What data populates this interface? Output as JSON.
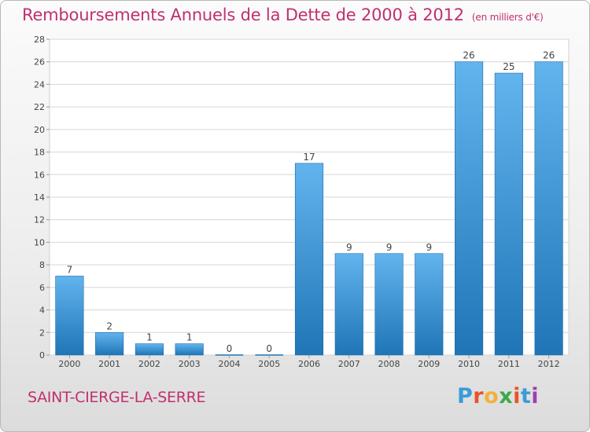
{
  "header": {
    "title": "Remboursements Annuels de la Dette de 2000 à 2012",
    "unit": "(en milliers d'€)"
  },
  "footer": {
    "commune": "SAINT-CIERGE-LA-SERRE",
    "logo_letters": [
      "P",
      "r",
      "o",
      "x",
      "i",
      "t",
      "i"
    ],
    "logo_colors": [
      "#3a9bd8",
      "#e8552a",
      "#f2b13b",
      "#3da94a",
      "#e8552a",
      "#3a9bd8",
      "#9c3fb0"
    ]
  },
  "chart_data": {
    "type": "bar",
    "title": "Remboursements Annuels de la Dette de 2000 à 2012",
    "categories": [
      "2000",
      "2001",
      "2002",
      "2003",
      "2004",
      "2005",
      "2006",
      "2007",
      "2008",
      "2009",
      "2010",
      "2011",
      "2012"
    ],
    "values": [
      7,
      2,
      1,
      1,
      0,
      0,
      17,
      9,
      9,
      9,
      26,
      25,
      26
    ],
    "ylim": [
      0,
      28
    ],
    "yticks": [
      0,
      2,
      4,
      6,
      8,
      10,
      12,
      14,
      16,
      18,
      20,
      22,
      24,
      26,
      28
    ],
    "grid": true,
    "bar_color_top": "#62b4ee",
    "bar_color_bottom": "#1f75b6",
    "xlabel": "",
    "ylabel": ""
  }
}
